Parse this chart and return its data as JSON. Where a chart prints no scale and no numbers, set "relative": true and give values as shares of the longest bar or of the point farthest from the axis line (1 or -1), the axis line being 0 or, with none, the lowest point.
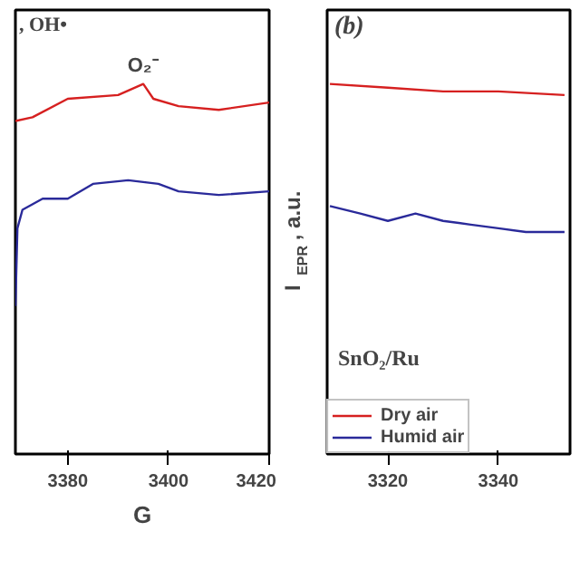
{
  "chart_data": [
    {
      "type": "line",
      "relative": true,
      "xlabel": "G",
      "xlim": [
        3369.6,
        3420
      ],
      "xticks": [
        3380,
        3400,
        3420
      ],
      "legend": false,
      "grid": false,
      "annotations": [
        ", OH•",
        {
          "text": "O₂⁻",
          "x": 3395,
          "y": 1.0
        }
      ],
      "series": [
        {
          "color": "#d62020",
          "x": [
            3369.6,
            3373,
            3380,
            3390,
            3395,
            3397,
            3402,
            3410,
            3420
          ],
          "values": [
            0.9,
            0.91,
            0.96,
            0.97,
            1.0,
            0.96,
            0.94,
            0.93,
            0.95
          ]
        },
        {
          "color": "#2a2a9a",
          "x": [
            3369.6,
            3370,
            3371,
            3375,
            3380,
            3385,
            3392,
            3398,
            3402,
            3410,
            3420
          ],
          "values": [
            0.4,
            0.61,
            0.66,
            0.69,
            0.69,
            0.73,
            0.74,
            0.73,
            0.71,
            0.7,
            0.71
          ]
        }
      ]
    },
    {
      "type": "line",
      "relative": true,
      "title": "(b)",
      "ylabel": "I$_{EPR}$, a.u.",
      "xlim": [
        3309,
        3353
      ],
      "xticks": [
        3320,
        3340
      ],
      "legend": "bottom left",
      "grid": false,
      "annotations": [
        "SnO₂/Ru"
      ],
      "series": [
        {
          "name": "Dry air",
          "color": "#d62020",
          "x": [
            3309.5,
            3320,
            3330,
            3340,
            3352
          ],
          "values": [
            1.0,
            0.99,
            0.98,
            0.98,
            0.97
          ]
        },
        {
          "name": "Humid air",
          "color": "#2a2a9a",
          "x": [
            3309.5,
            3315,
            3320,
            3325,
            3330,
            3335,
            3340,
            3345,
            3352
          ],
          "values": [
            0.67,
            0.65,
            0.63,
            0.65,
            0.63,
            0.62,
            0.61,
            0.6,
            0.6
          ]
        }
      ]
    }
  ]
}
